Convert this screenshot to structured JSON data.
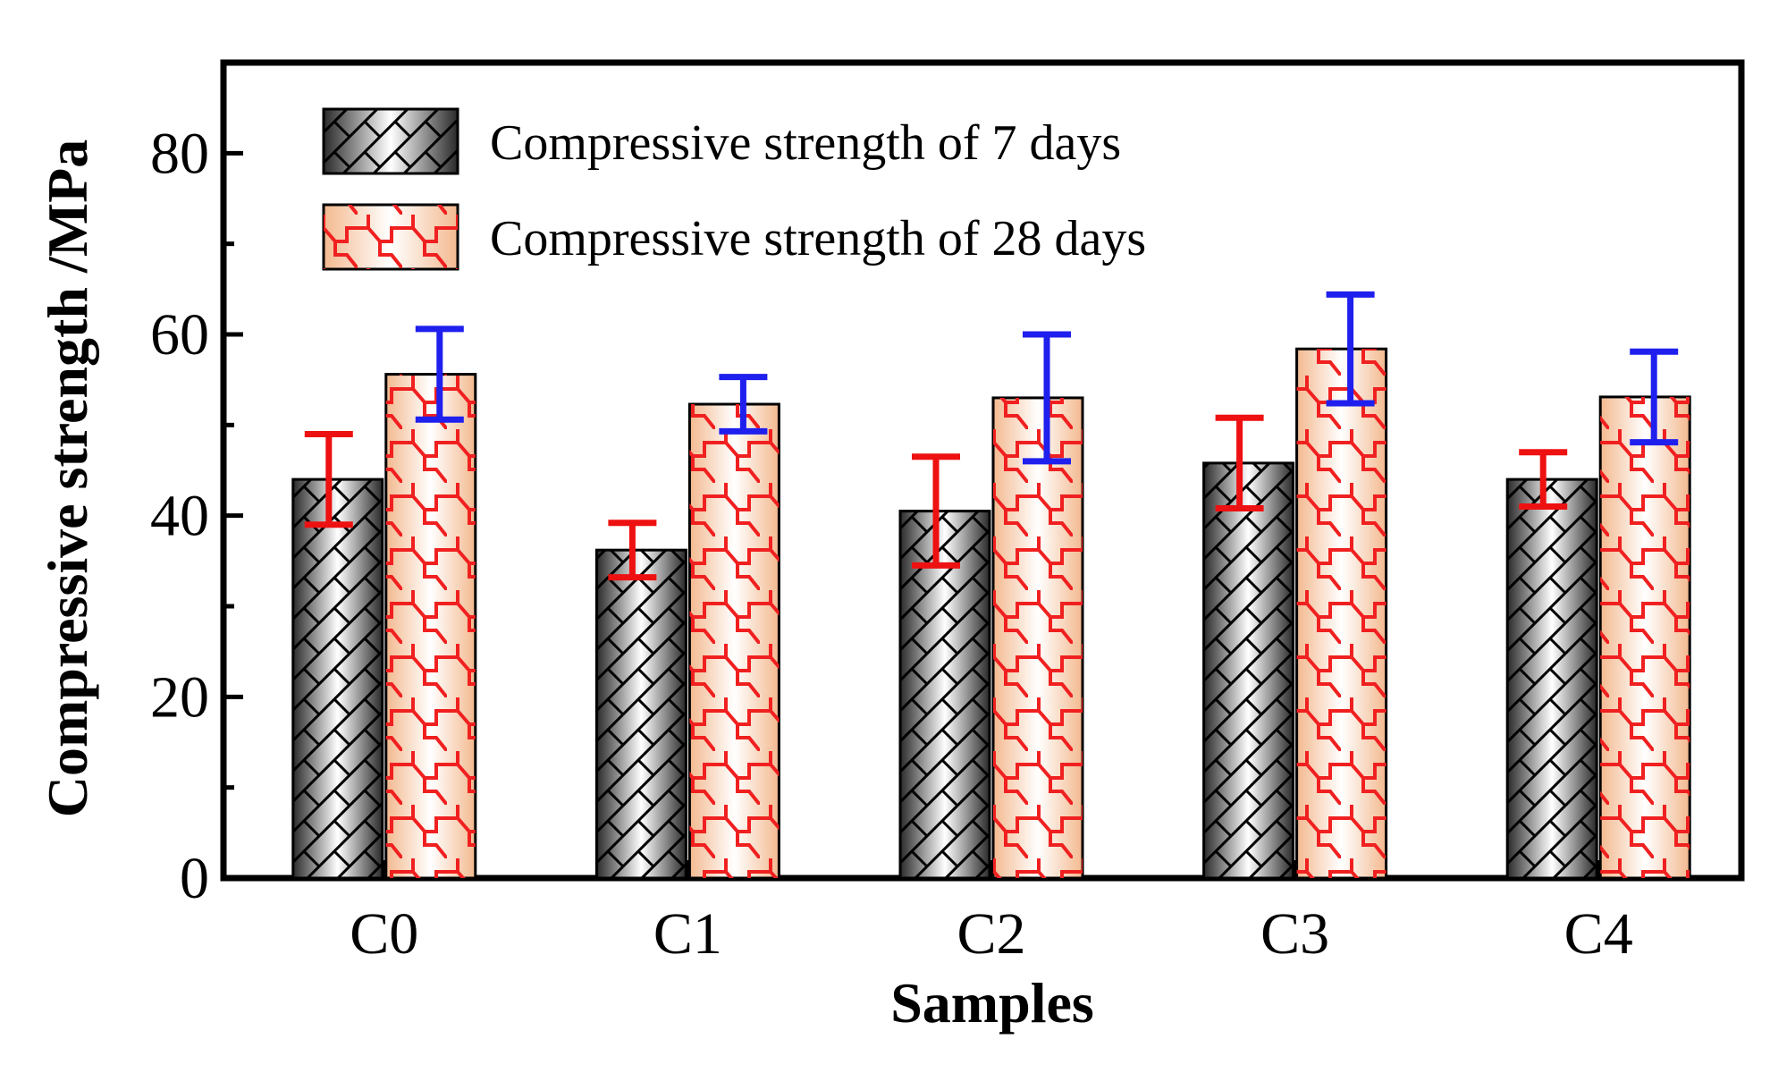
{
  "chart_data": {
    "type": "bar",
    "title": "",
    "xlabel": "Samples",
    "ylabel": "Compressive strength /MPa",
    "categories": [
      "C0",
      "C1",
      "C2",
      "C3",
      "C4"
    ],
    "ylim": [
      0,
      90
    ],
    "yticks": [
      0,
      20,
      40,
      60,
      80
    ],
    "grid": false,
    "legend_position": "top-left",
    "series": [
      {
        "name": "Compressive strength of 7 days",
        "values": [
          44.0,
          36.2,
          40.5,
          45.8,
          44.0
        ],
        "error": [
          5.0,
          3.0,
          6.0,
          5.0,
          3.0
        ],
        "error_color": "#ee1111",
        "hatch_color": "#000000"
      },
      {
        "name": "Compressive strength of 28 days",
        "values": [
          55.6,
          52.3,
          53.0,
          58.4,
          53.1
        ],
        "error": [
          5.0,
          3.0,
          7.0,
          6.0,
          5.0
        ],
        "error_color": "#1f1fee",
        "hatch_color": "#f02020"
      }
    ]
  }
}
